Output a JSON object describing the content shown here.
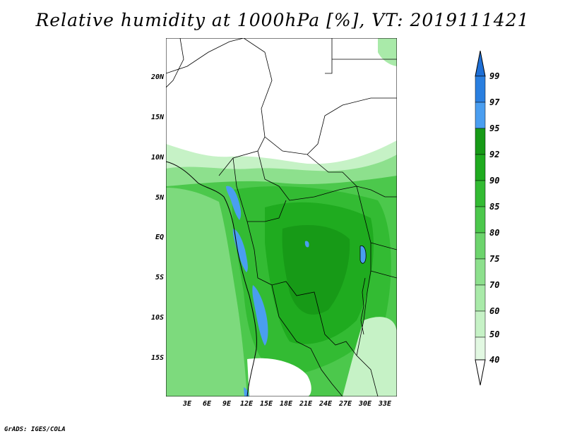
{
  "title": "Relative humidity at 1000hPa [%], VT: 2019111421",
  "footer": "GrADS: IGES/COLA",
  "map": {
    "lat_ticks": [
      "20N",
      "15N",
      "10N",
      "5N",
      "EQ",
      "5S",
      "10S",
      "15S"
    ],
    "lon_ticks": [
      "3E",
      "6E",
      "9E",
      "12E",
      "15E",
      "18E",
      "21E",
      "24E",
      "27E",
      "30E",
      "33E"
    ]
  },
  "colorbar": {
    "labels": [
      "99",
      "97",
      "95",
      "92",
      "90",
      "85",
      "80",
      "75",
      "70",
      "60",
      "50",
      "40"
    ],
    "colors": {
      "above_99": "#1e6fd6",
      "97_99": "#2a7fe0",
      "95_97": "#4a9ef0",
      "92_95": "#179a17",
      "90_92": "#1fab1f",
      "85_90": "#33bb33",
      "80_85": "#4cc84c",
      "75_80": "#6dd46d",
      "70_75": "#8de08d",
      "60_70": "#a9eaa9",
      "50_60": "#c6f2c6",
      "40_50": "#e2f8e2",
      "below_40": "#ffffff"
    }
  }
}
